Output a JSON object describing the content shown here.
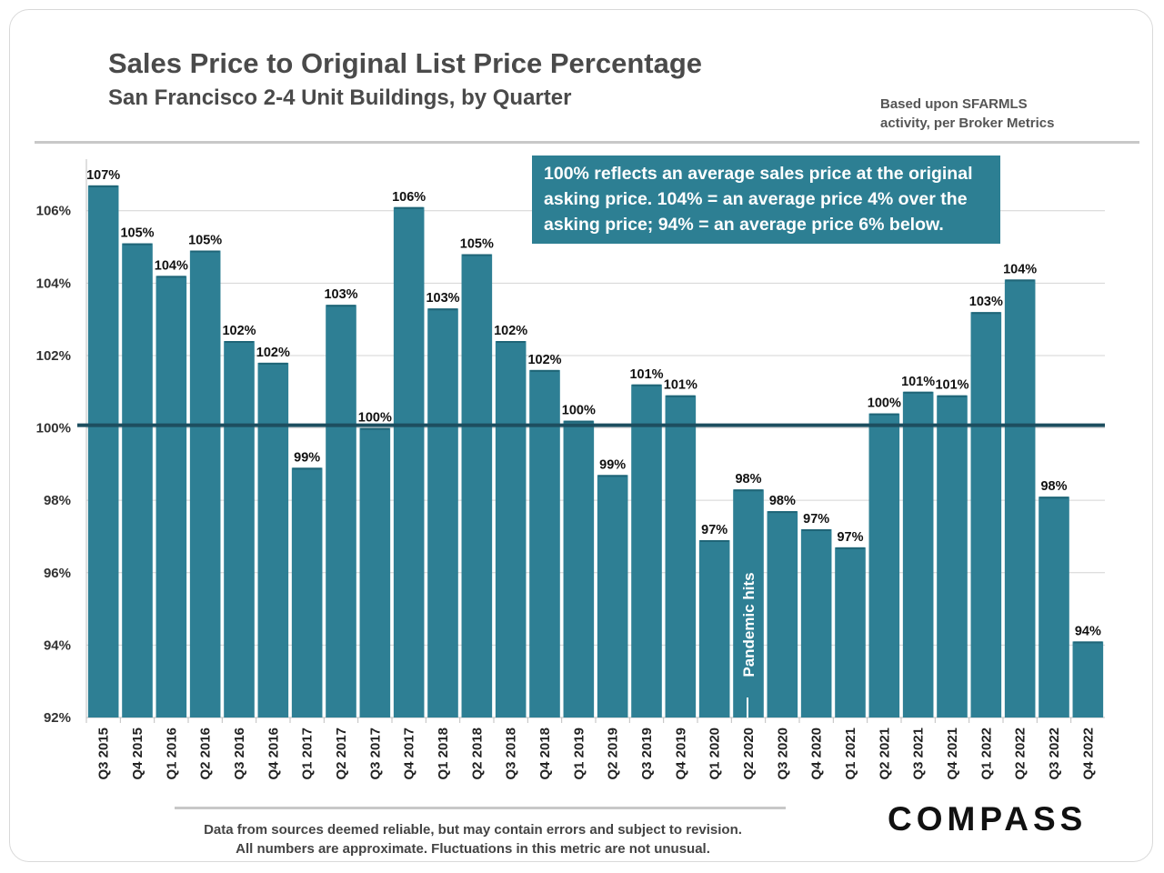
{
  "header": {
    "title": "Sales Price to Original List Price Percentage",
    "subtitle": "San Francisco 2-4 Unit Buildings, by Quarter",
    "source_line1": "Based upon SFARMLS",
    "source_line2": "activity, per Broker Metrics"
  },
  "callout": {
    "line1": "100% reflects an average sales price at the original",
    "line2": "asking price. 104% = an average price 4% over the",
    "line3": "asking price; 94% = an average price 6% below."
  },
  "footer": {
    "note_line1": "Data from sources deemed reliable, but may contain errors and subject to revision.",
    "note_line2": "All numbers are approximate. Fluctuations in this metric are not unusual.",
    "logo": "COMPASS"
  },
  "colors": {
    "bar": "#2e7f94",
    "reference_line": "#1d4e5f",
    "grid": "#d4d4d4"
  },
  "chart_data": {
    "type": "bar",
    "categories": [
      "Q3 2015",
      "Q4 2015",
      "Q1 2016",
      "Q2 2016",
      "Q3 2016",
      "Q4 2016",
      "Q1 2017",
      "Q2 2017",
      "Q3 2017",
      "Q4 2017",
      "Q1 2018",
      "Q2 2018",
      "Q3 2018",
      "Q4 2018",
      "Q1 2019",
      "Q2 2019",
      "Q3 2019",
      "Q4 2019",
      "Q1 2020",
      "Q2 2020",
      "Q3 2020",
      "Q4 2020",
      "Q1 2021",
      "Q2 2021",
      "Q3 2021",
      "Q4 2021",
      "Q1 2022",
      "Q2 2022",
      "Q3 2022",
      "Q4 2022"
    ],
    "values": [
      106.7,
      105.1,
      104.2,
      104.9,
      102.4,
      101.8,
      98.9,
      103.4,
      100.0,
      106.1,
      103.3,
      104.8,
      102.4,
      101.6,
      100.2,
      98.7,
      101.2,
      100.9,
      96.9,
      98.3,
      97.7,
      97.2,
      96.7,
      100.4,
      101.0,
      100.9,
      103.2,
      104.1,
      98.1,
      94.1
    ],
    "data_labels": [
      "107%",
      "105%",
      "104%",
      "105%",
      "102%",
      "102%",
      "99%",
      "103%",
      "100%",
      "106%",
      "103%",
      "105%",
      "102%",
      "102%",
      "100%",
      "99%",
      "101%",
      "101%",
      "97%",
      "98%",
      "98%",
      "97%",
      "97%",
      "100%",
      "101%",
      "101%",
      "103%",
      "104%",
      "98%",
      "94%"
    ],
    "ylim": [
      92,
      107.3
    ],
    "yticks": [
      92,
      94,
      96,
      98,
      100,
      102,
      104,
      106
    ],
    "ytick_labels": [
      "92%",
      "94%",
      "96%",
      "98%",
      "100%",
      "102%",
      "104%",
      "106%"
    ],
    "reference_line": 100,
    "grid": true,
    "annotation": {
      "text": "Pandemic hits",
      "category": "Q2 2020"
    }
  }
}
